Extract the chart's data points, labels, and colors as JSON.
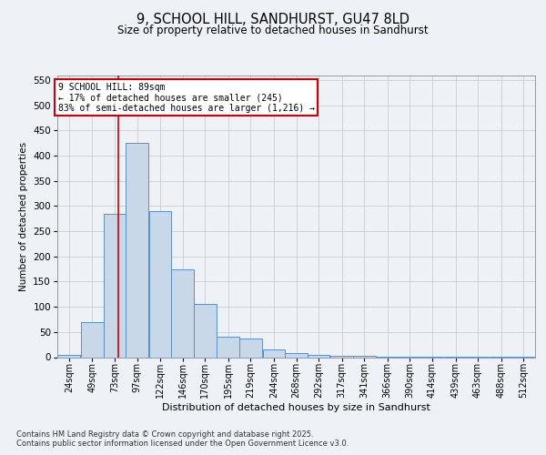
{
  "title1": "9, SCHOOL HILL, SANDHURST, GU47 8LD",
  "title2": "Size of property relative to detached houses in Sandhurst",
  "xlabel": "Distribution of detached houses by size in Sandhurst",
  "ylabel": "Number of detached properties",
  "bins": [
    "24sqm",
    "49sqm",
    "73sqm",
    "97sqm",
    "122sqm",
    "146sqm",
    "170sqm",
    "195sqm",
    "219sqm",
    "244sqm",
    "268sqm",
    "292sqm",
    "317sqm",
    "341sqm",
    "366sqm",
    "390sqm",
    "414sqm",
    "439sqm",
    "463sqm",
    "488sqm",
    "512sqm"
  ],
  "bin_edges": [
    24,
    49,
    73,
    97,
    122,
    146,
    170,
    195,
    219,
    244,
    268,
    292,
    317,
    341,
    366,
    390,
    414,
    439,
    463,
    488,
    512
  ],
  "values": [
    5,
    70,
    285,
    425,
    290,
    175,
    105,
    40,
    37,
    15,
    8,
    5,
    3,
    2,
    1,
    1,
    1,
    1,
    1,
    1,
    1
  ],
  "bar_color": "#c8d8e8",
  "bar_edge_color": "#5b8fc9",
  "grid_color": "#cccccc",
  "vline_x": 89,
  "vline_color": "#cc0000",
  "annotation_text": "9 SCHOOL HILL: 89sqm\n← 17% of detached houses are smaller (245)\n83% of semi-detached houses are larger (1,216) →",
  "annotation_box_color": "#cc0000",
  "ylim": [
    0,
    560
  ],
  "yticks": [
    0,
    50,
    100,
    150,
    200,
    250,
    300,
    350,
    400,
    450,
    500,
    550
  ],
  "footer1": "Contains HM Land Registry data © Crown copyright and database right 2025.",
  "footer2": "Contains public sector information licensed under the Open Government Licence v3.0.",
  "bg_color": "#eef2f7",
  "plot_bg_color": "#eef2f7"
}
